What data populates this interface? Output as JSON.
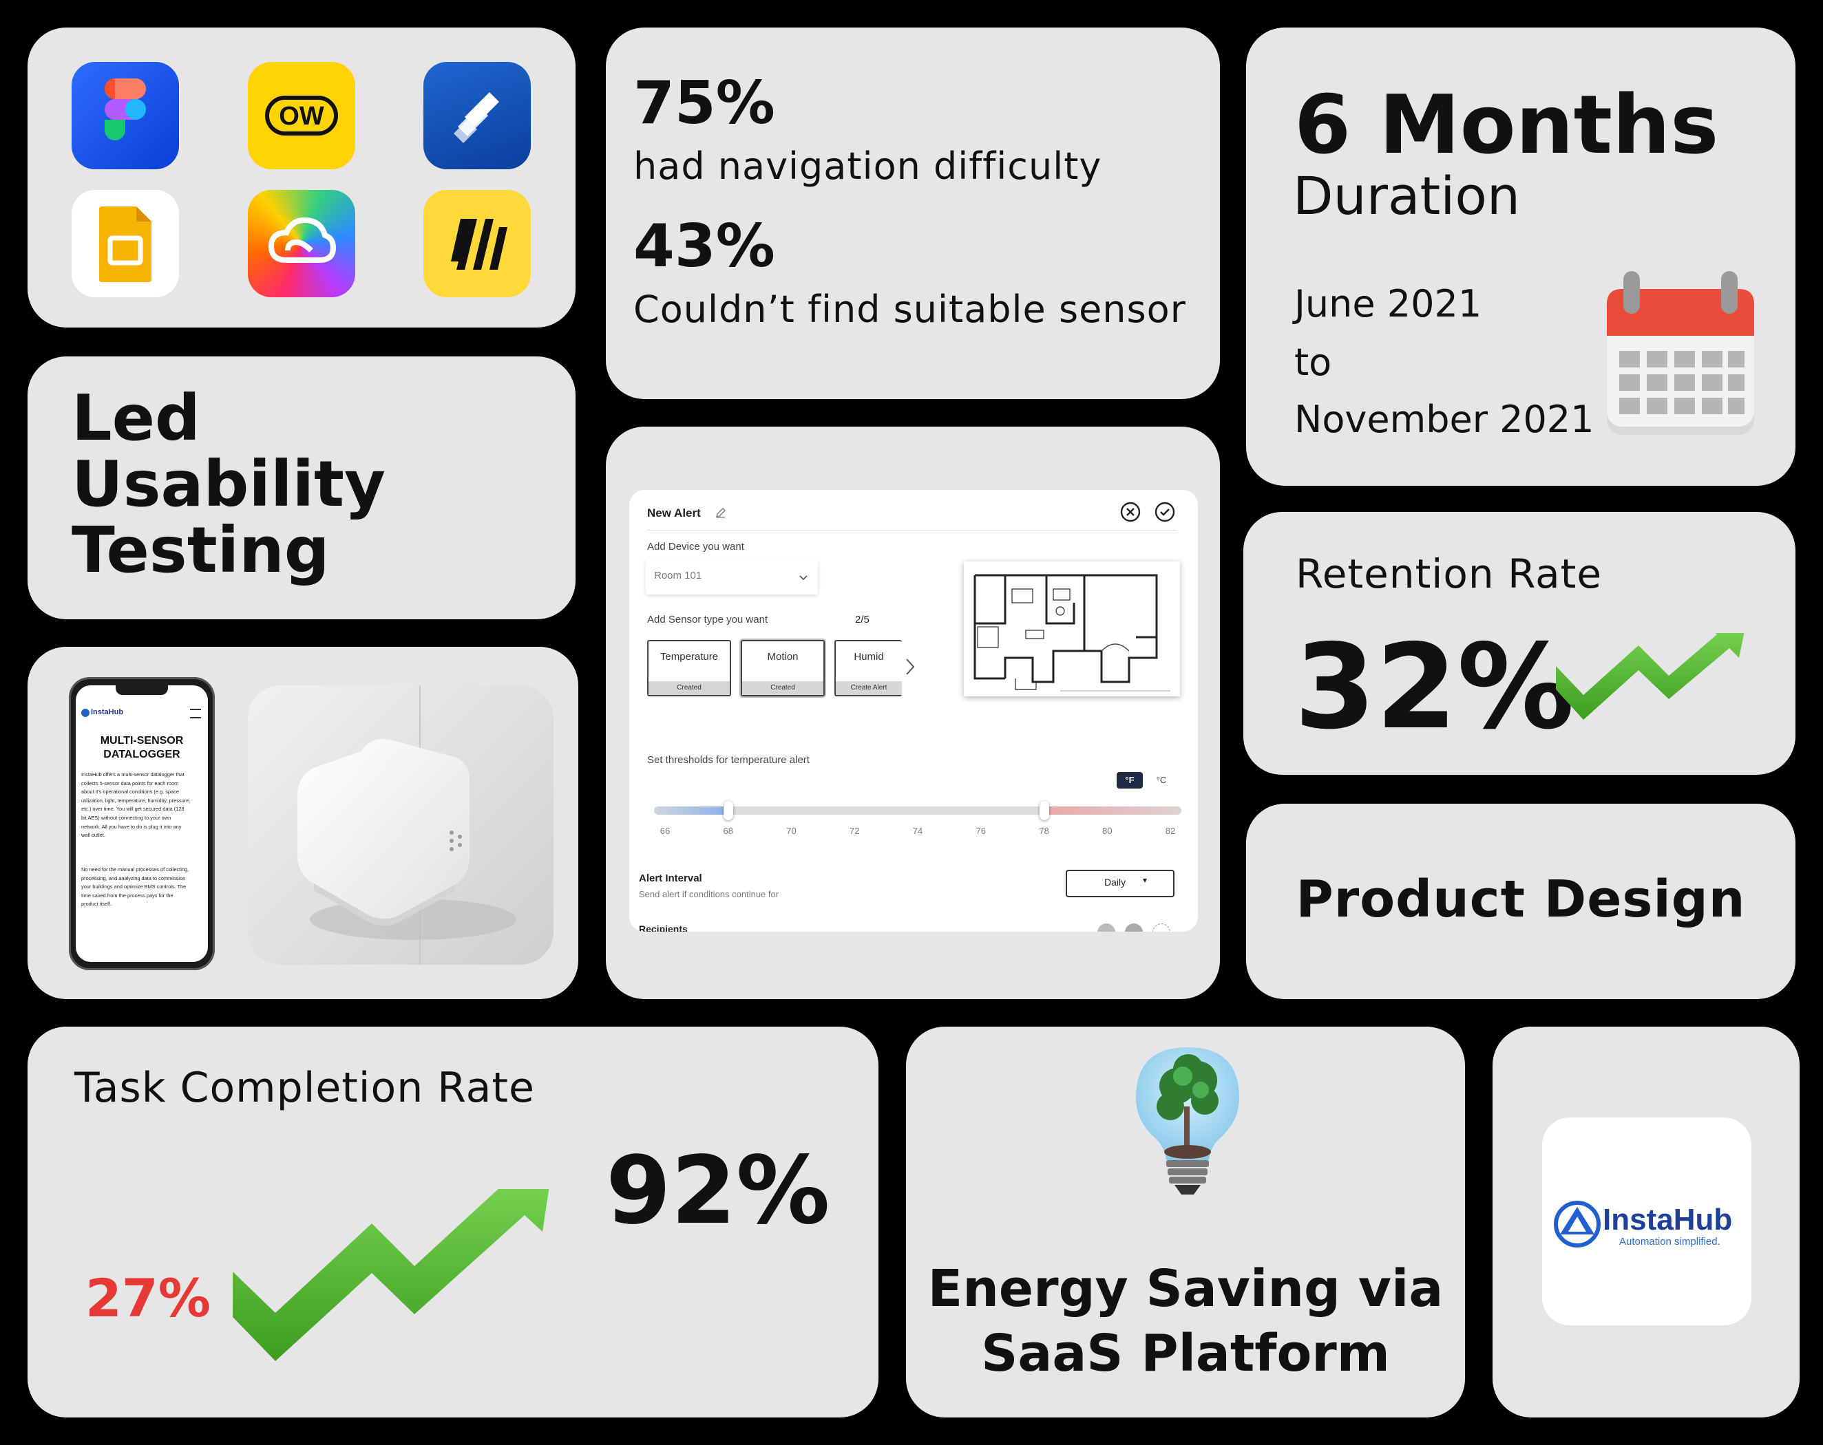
{
  "tools": {
    "icons": [
      "figma-icon",
      "ow-icon",
      "jira-icon",
      "google-slides-icon",
      "creative-cloud-icon",
      "miro-icon"
    ],
    "ow_label": "OW"
  },
  "research": {
    "stat1_value": "75%",
    "stat1_label": "had navigation difficulty",
    "stat2_value": "43%",
    "stat2_label": "Couldn’t find suitable sensor"
  },
  "duration": {
    "value": "6 Months",
    "label": "Duration",
    "start": "June 2021",
    "to": "to",
    "end": "November 2021"
  },
  "role": {
    "line1": "Led",
    "line2": "Usability",
    "line3": "Testing"
  },
  "retention": {
    "label": "Retention Rate",
    "value": "32%",
    "trend_color": "#4caf2a"
  },
  "product_design": {
    "label": "Product Design"
  },
  "alert_mockup": {
    "title": "New Alert",
    "device_label": "Add Device you want",
    "device_value": "Room 101",
    "sensor_label": "Add Sensor type you want",
    "sensor_count": "2/5",
    "sensors": [
      {
        "name": "Temperature",
        "status": "Created"
      },
      {
        "name": "Motion",
        "status": "Created"
      },
      {
        "name": "Humid",
        "status": "Create Alert"
      }
    ],
    "threshold_label": "Set thresholds for temperature alert",
    "unit_f": "°F",
    "unit_c": "°C",
    "ticks": [
      "66",
      "68",
      "70",
      "72",
      "74",
      "76",
      "78",
      "80",
      "82"
    ],
    "threshold_low": 68,
    "threshold_high": 78,
    "interval_label": "Alert Interval",
    "interval_hint": "Send alert if conditions continue for",
    "interval_value": "Daily",
    "recipients_label": "Recipients"
  },
  "device_showcase": {
    "brand": "InstaHub",
    "heading_line1": "MULTI-SENSOR",
    "heading_line2": "DATALOGGER",
    "para1": [
      "InstaHub offers a multi-sensor datalogger that",
      "collects 5-sensor data points for each room",
      "about it's operational conditions (e.g. space",
      "utilization, light, temperature, humidity, pressure,",
      "etc.) over time. You will get secured data (128",
      "bit AES) without connecting to your own",
      "network. All you have to do is plug it into any",
      "wall outlet."
    ],
    "para2": [
      "No need for the manual processes of collecting,",
      "processing, and analyzing data to commission",
      "your buildings and optimize BMS controls. The",
      "time saved from the process pays for the",
      "product itself."
    ]
  },
  "task_completion": {
    "label": "Task Completion Rate",
    "before": "27%",
    "after": "92%",
    "before_color": "#e53935",
    "trend_color": "#4caf2a"
  },
  "energy": {
    "line1": "Energy Saving via",
    "line2": "SaaS Platform"
  },
  "logo": {
    "brand": "InstaHub",
    "tagline": "Automation simplified."
  }
}
